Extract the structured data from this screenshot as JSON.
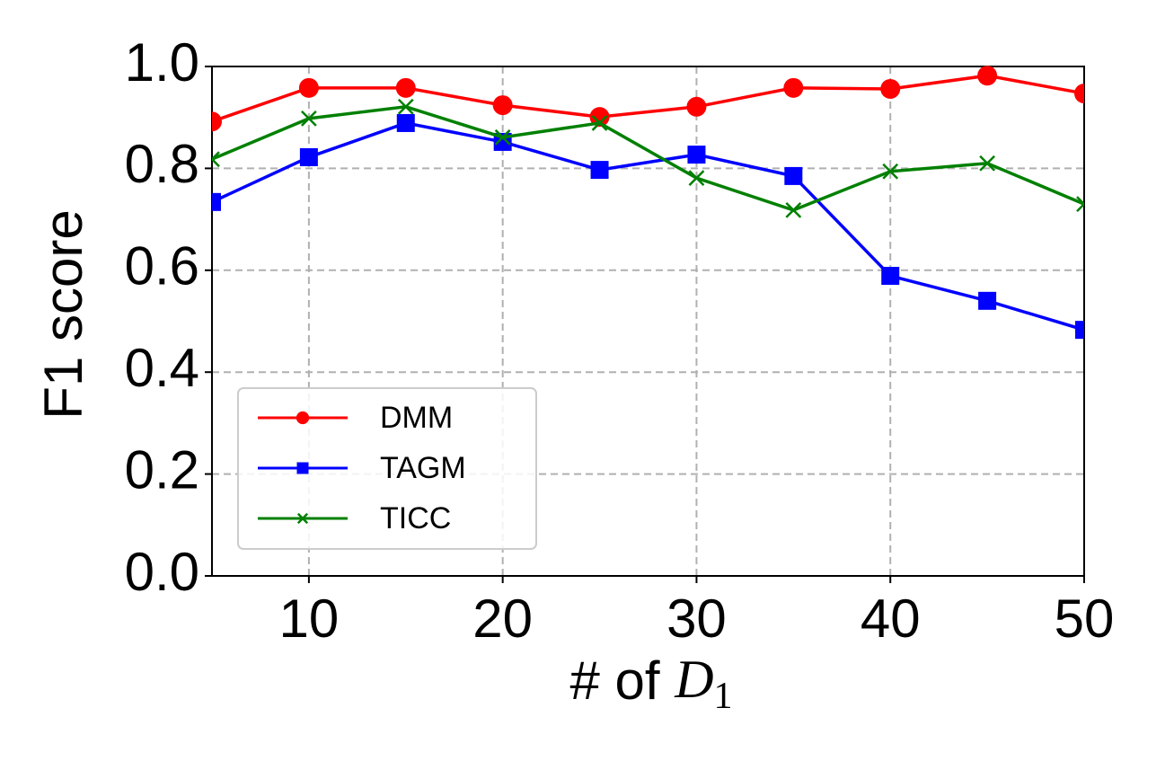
{
  "chart_data": {
    "type": "line",
    "xlabel": [
      "# of ",
      "D",
      "1"
    ],
    "ylabel": "F1 score",
    "x": [
      5,
      10,
      15,
      20,
      25,
      30,
      35,
      40,
      45,
      50
    ],
    "series": [
      {
        "name": "DMM",
        "color": "#ff0000",
        "marker": "circle",
        "values": [
          0.892,
          0.958,
          0.958,
          0.924,
          0.901,
          0.921,
          0.958,
          0.956,
          0.982,
          0.947
        ]
      },
      {
        "name": "TAGM",
        "color": "#0000ff",
        "marker": "square",
        "values": [
          0.734,
          0.822,
          0.889,
          0.852,
          0.797,
          0.827,
          0.785,
          0.589,
          0.54,
          0.483
        ]
      },
      {
        "name": "TICC",
        "color": "#008000",
        "marker": "x",
        "values": [
          0.818,
          0.898,
          0.921,
          0.861,
          0.889,
          0.781,
          0.718,
          0.794,
          0.81,
          0.73
        ]
      }
    ],
    "xlim": [
      5,
      50
    ],
    "xticks": [
      10,
      20,
      30,
      40,
      50
    ],
    "ylim": [
      0,
      1
    ],
    "yticks": [
      {
        "value": 0,
        "label": "0.0"
      },
      {
        "value": 0.2,
        "label": "0.2"
      },
      {
        "value": 0.4,
        "label": "0.4"
      },
      {
        "value": 0.6,
        "label": "0.6"
      },
      {
        "value": 0.8,
        "label": "0.8"
      },
      {
        "value": 1,
        "label": "1.0"
      }
    ],
    "grid": true,
    "legend": "lower left"
  }
}
